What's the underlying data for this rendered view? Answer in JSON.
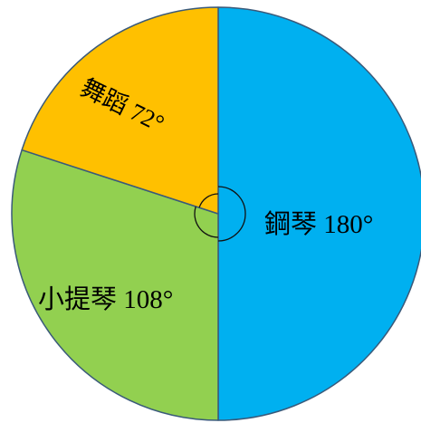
{
  "chart_data": {
    "type": "pie",
    "unit": "degrees",
    "slices": [
      {
        "label": "鋼琴 180°",
        "name": "鋼琴",
        "value": 180,
        "color": "#00b0f0"
      },
      {
        "label": "小提琴 108°",
        "name": "小提琴",
        "value": 108,
        "color": "#92d050"
      },
      {
        "label": "舞蹈 72°",
        "name": "舞蹈",
        "value": 72,
        "color": "#ffc000"
      }
    ],
    "start_angle_deg": 0,
    "direction": "clockwise",
    "angle_markers": true
  }
}
